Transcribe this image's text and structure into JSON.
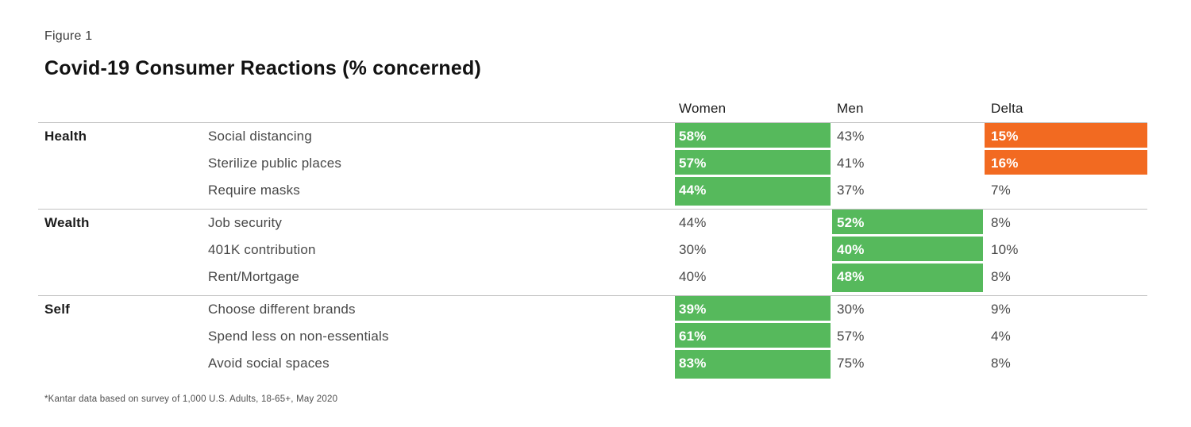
{
  "figure_label": "Figure 1",
  "title": "Covid-19 Consumer Reactions (% concerned)",
  "footnote": "*Kantar data based on survey of 1,000 U.S. Adults, 18-65+, May 2020",
  "colors": {
    "highlight_green": "#56b95c",
    "highlight_orange": "#f26a21",
    "divider_gray": "#c2c2c2"
  },
  "chart_data": {
    "type": "table",
    "columns": [
      "Women",
      "Men",
      "Delta"
    ],
    "groups": [
      {
        "category": "Health",
        "rows": [
          {
            "item": "Social distancing",
            "women": "58%",
            "men": "43%",
            "delta": "15%",
            "highlight": "women",
            "delta_highlight": true
          },
          {
            "item": "Sterilize public places",
            "women": "57%",
            "men": "41%",
            "delta": "16%",
            "highlight": "women",
            "delta_highlight": true
          },
          {
            "item": "Require masks",
            "women": "44%",
            "men": "37%",
            "delta": "7%",
            "highlight": "women",
            "delta_highlight": false
          }
        ]
      },
      {
        "category": "Wealth",
        "rows": [
          {
            "item": "Job security",
            "women": "44%",
            "men": "52%",
            "delta": "8%",
            "highlight": "men",
            "delta_highlight": false
          },
          {
            "item": "401K contribution",
            "women": "30%",
            "men": "40%",
            "delta": "10%",
            "highlight": "men",
            "delta_highlight": false
          },
          {
            "item": "Rent/Mortgage",
            "women": "40%",
            "men": "48%",
            "delta": "8%",
            "highlight": "men",
            "delta_highlight": false
          }
        ]
      },
      {
        "category": "Self",
        "rows": [
          {
            "item": "Choose different brands",
            "women": "39%",
            "men": "30%",
            "delta": "9%",
            "highlight": "women",
            "delta_highlight": false
          },
          {
            "item": "Spend less on non-essentials",
            "women": "61%",
            "men": "57%",
            "delta": "4%",
            "highlight": "women",
            "delta_highlight": false
          },
          {
            "item": "Avoid social spaces",
            "women": "83%",
            "men": "75%",
            "delta": "8%",
            "highlight": "women",
            "delta_highlight": false
          }
        ]
      }
    ]
  }
}
